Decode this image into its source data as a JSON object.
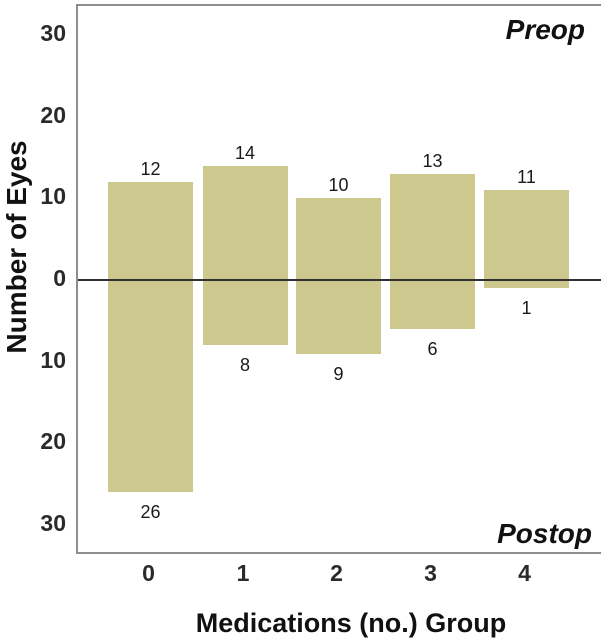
{
  "figure": {
    "background": "#ffffff",
    "bar_color": "#cdc98e",
    "frame_color": "#8e8e8e",
    "zero_line_color": "#303030",
    "text_color": "#1a1a1a"
  },
  "chart_data": {
    "type": "bar",
    "subtype": "diverging-vertical",
    "title": "",
    "xlabel": "Medications (no.) Group",
    "ylabel": "Number of Eyes",
    "categories": [
      "0",
      "1",
      "2",
      "3",
      "4"
    ],
    "series": [
      {
        "name": "Preop",
        "direction": "up",
        "values": [
          12,
          14,
          10,
          13,
          11
        ]
      },
      {
        "name": "Postop",
        "direction": "down",
        "values": [
          26,
          8,
          9,
          6,
          1
        ]
      }
    ],
    "y_ticks": [
      {
        "label": "30",
        "value": 30
      },
      {
        "label": "20",
        "value": 20
      },
      {
        "label": "10",
        "value": 10
      },
      {
        "label": "0",
        "value": 0
      },
      {
        "label": "10",
        "value": -10
      },
      {
        "label": "20",
        "value": -20
      },
      {
        "label": "30",
        "value": -30
      }
    ],
    "ylim": [
      -33.5,
      33.5
    ],
    "grid": false,
    "legend": "none",
    "annotations": [
      {
        "text": "Preop",
        "position": "top-right"
      },
      {
        "text": "Postop",
        "position": "bottom-right"
      }
    ]
  }
}
